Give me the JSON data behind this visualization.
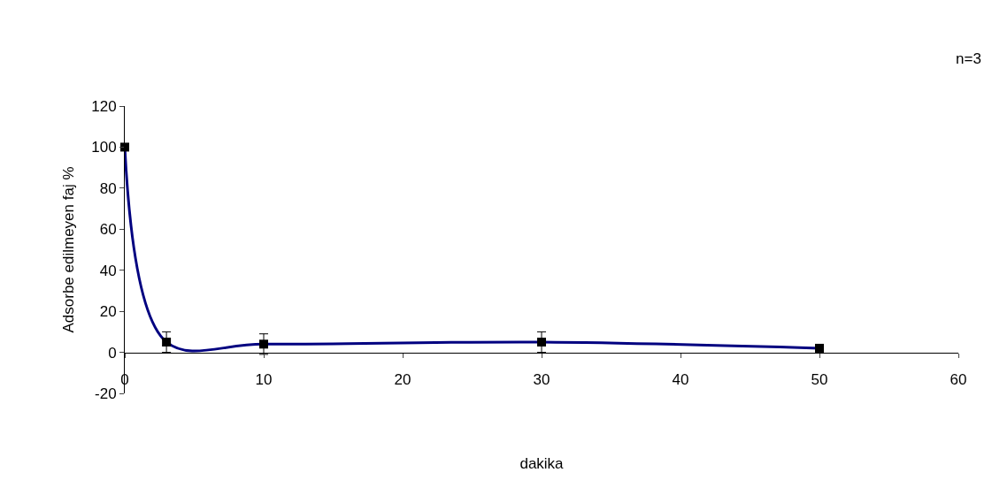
{
  "chart_data": {
    "type": "line",
    "xlabel": "dakika",
    "ylabel": "Adsorbe edilmeyen faj %",
    "annotations": [
      "n=3"
    ],
    "x": [
      0,
      3,
      10,
      30,
      50
    ],
    "series": [
      {
        "color": "#000080",
        "values": [
          100,
          5,
          4,
          5,
          2
        ],
        "errors": [
          1,
          5,
          5,
          5,
          1
        ]
      }
    ],
    "xlim": [
      0,
      60
    ],
    "xticks": [
      0,
      10,
      20,
      30,
      40,
      50,
      60
    ],
    "ylim": [
      -20,
      120
    ],
    "yticks": [
      -20,
      0,
      20,
      40,
      60,
      80,
      100,
      120
    ],
    "legend": false,
    "marker": "square",
    "line_style": "solid"
  }
}
